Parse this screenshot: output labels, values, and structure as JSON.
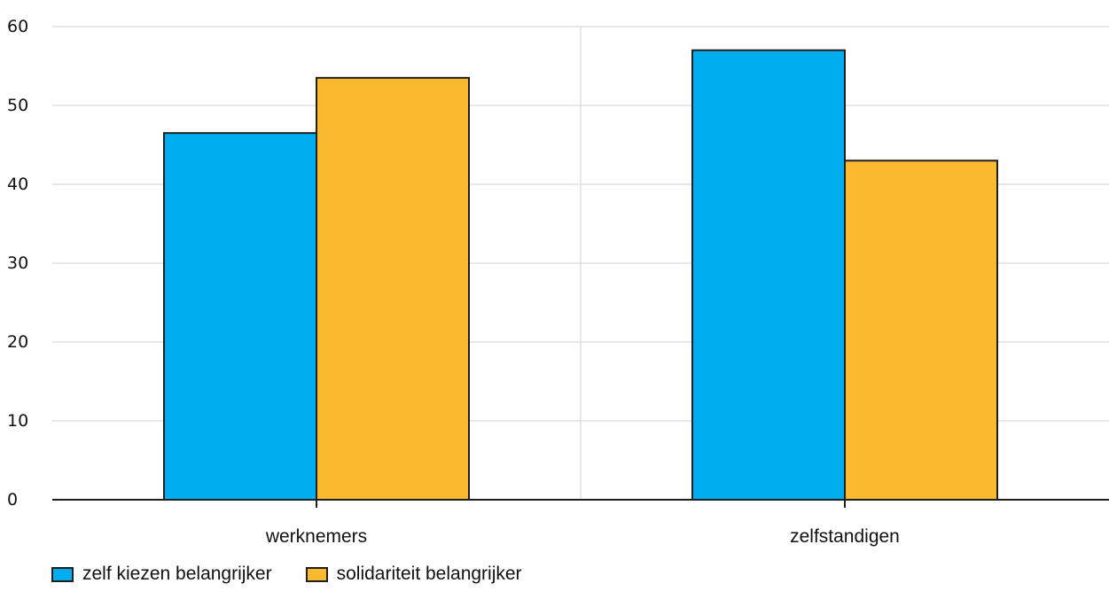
{
  "colors": {
    "series_1": "#00AEEF",
    "series_2": "#FBB930",
    "outline": "#1f1f1f",
    "grid": "#d9d9d9",
    "axis": "#1f1f1f"
  },
  "legend": {
    "items": [
      {
        "label": "zelf kiezen belangrijker"
      },
      {
        "label": "solidariteit belangrijker"
      }
    ]
  },
  "chart_data": {
    "type": "bar",
    "categories": [
      "werknemers",
      "zelfstandigen"
    ],
    "series": [
      {
        "name": "zelf kiezen belangrijker",
        "values": [
          46.5,
          57
        ]
      },
      {
        "name": "solidariteit belangrijker",
        "values": [
          53.5,
          43
        ]
      }
    ],
    "title": "",
    "xlabel": "",
    "ylabel": "",
    "ylim": [
      0,
      60
    ],
    "yticks": [
      "0",
      "10",
      "20",
      "30",
      "40",
      "50",
      "60"
    ],
    "grid": true,
    "legend_position": "bottom-left"
  }
}
